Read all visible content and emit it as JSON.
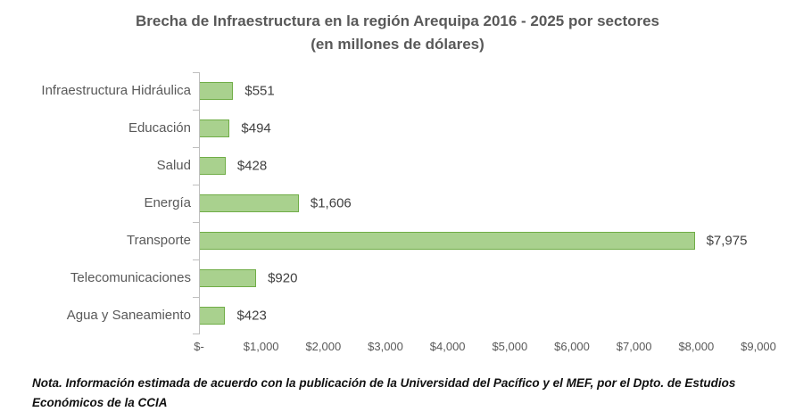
{
  "title": {
    "line1": "Brecha de Infraestructura en la región Arequipa 2016 - 2025 por sectores",
    "line2": "(en millones de dólares)"
  },
  "note": "Nota. Información estimada de acuerdo con la publicación de la Universidad del Pacífico y el MEF, por el Dpto. de Estudios Económicos de la CCIA",
  "colors": {
    "bar_fill": "#A9D18E",
    "bar_border": "#70AD47",
    "axis_line": "#BFBFBF",
    "axis_text": "#595959",
    "title_text": "#595959",
    "data_label_text": "#404040"
  },
  "chart_data": {
    "type": "bar",
    "orientation": "horizontal",
    "title": "Brecha de Infraestructura en la región Arequipa 2016 - 2025 por sectores (en millones de dólares)",
    "categories": [
      "Infraestructura Hidráulica",
      "Educación",
      "Salud",
      "Energía",
      "Transporte",
      "Telecomunicaciones",
      "Agua y Saneamiento"
    ],
    "values": [
      551,
      494,
      428,
      1606,
      7975,
      920,
      423
    ],
    "data_labels": [
      "$551",
      "$494",
      "$428",
      "$1,606",
      "$7,975",
      "$920",
      "$423"
    ],
    "x_ticks": [
      "$-",
      "$1,000",
      "$2,000",
      "$3,000",
      "$4,000",
      "$5,000",
      "$6,000",
      "$7,000",
      "$8,000",
      "$9,000"
    ],
    "xlim": [
      0,
      9000
    ],
    "xlabel": "",
    "ylabel": "",
    "grid": false,
    "legend": false
  }
}
